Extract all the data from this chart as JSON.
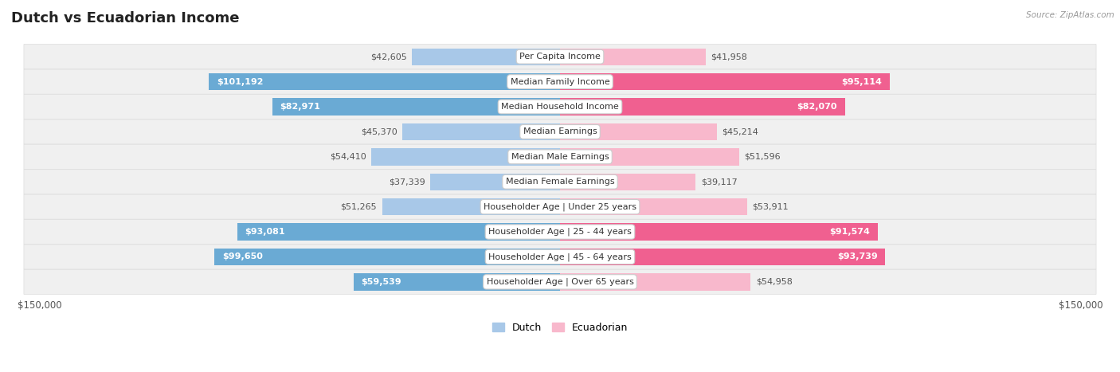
{
  "title": "Dutch vs Ecuadorian Income",
  "source": "Source: ZipAtlas.com",
  "categories": [
    "Per Capita Income",
    "Median Family Income",
    "Median Household Income",
    "Median Earnings",
    "Median Male Earnings",
    "Median Female Earnings",
    "Householder Age | Under 25 years",
    "Householder Age | 25 - 44 years",
    "Householder Age | 45 - 64 years",
    "Householder Age | Over 65 years"
  ],
  "dutch_values": [
    42605,
    101192,
    82971,
    45370,
    54410,
    37339,
    51265,
    93081,
    99650,
    59539
  ],
  "ecuadorian_values": [
    41958,
    95114,
    82070,
    45214,
    51596,
    39117,
    53911,
    91574,
    93739,
    54958
  ],
  "dutch_labels": [
    "$42,605",
    "$101,192",
    "$82,971",
    "$45,370",
    "$54,410",
    "$37,339",
    "$51,265",
    "$93,081",
    "$99,650",
    "$59,539"
  ],
  "ecuadorian_labels": [
    "$41,958",
    "$95,114",
    "$82,070",
    "$45,214",
    "$51,596",
    "$39,117",
    "$53,911",
    "$91,574",
    "$93,739",
    "$54,958"
  ],
  "dutch_color_light": "#a8c8e8",
  "dutch_color_dark": "#6aaad4",
  "ecuadorian_color_light": "#f8b8cc",
  "ecuadorian_color_dark": "#f06090",
  "max_value": 150000,
  "bar_height": 0.68,
  "title_fontsize": 13,
  "label_fontsize": 8,
  "category_fontsize": 8,
  "axis_label_fontsize": 8.5,
  "legend_fontsize": 9,
  "background_color": "#ffffff",
  "row_bg": "#f0f0f0",
  "white_label_threshold": 55000
}
